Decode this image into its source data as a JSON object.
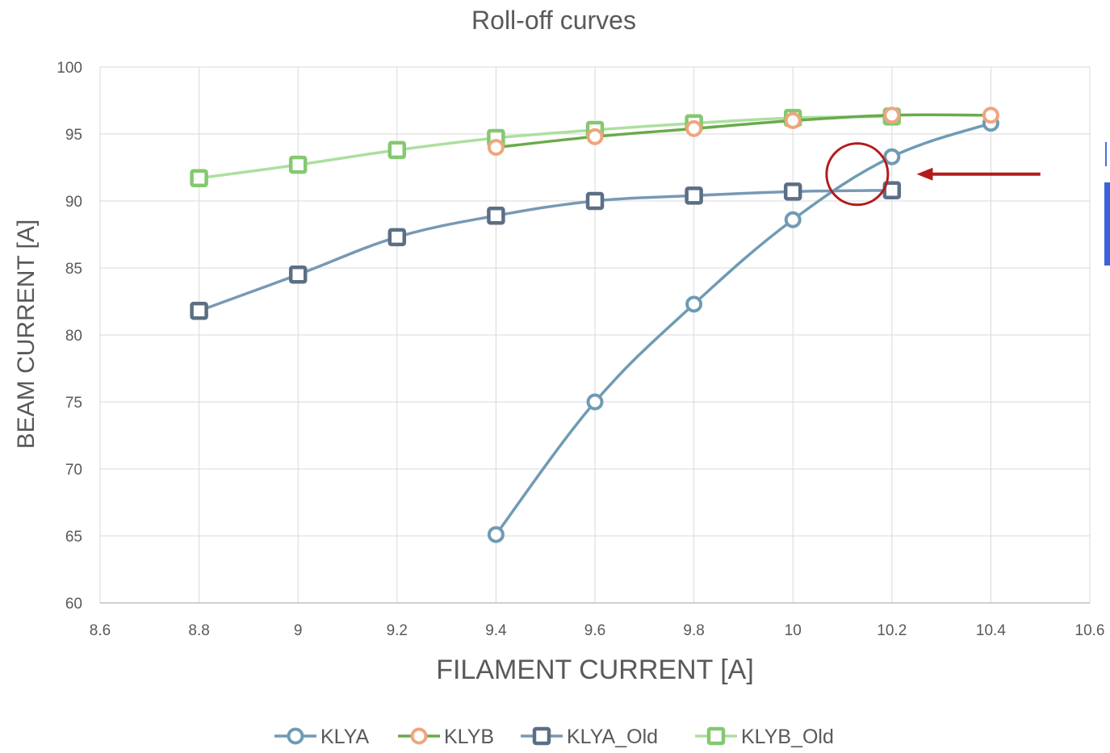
{
  "chart_data": {
    "type": "line",
    "title": "Roll-off curves",
    "xlabel": "FILAMENT CURRENT [A]",
    "ylabel": "BEAM CURRENT [A]",
    "xlim": [
      8.6,
      10.6
    ],
    "ylim": [
      60,
      100
    ],
    "x_ticks": [
      "8.6",
      "8.8",
      "9",
      "9.2",
      "9.4",
      "9.6",
      "9.8",
      "10",
      "10.2",
      "10.4",
      "10.6"
    ],
    "y_ticks": [
      "60",
      "65",
      "70",
      "75",
      "80",
      "85",
      "90",
      "95",
      "100"
    ],
    "grid": true,
    "legend_position": "bottom",
    "series": [
      {
        "name": "KLYA",
        "color": "#6f9bb4",
        "marker": "circle",
        "x": [
          9.4,
          9.6,
          9.8,
          10.0,
          10.2,
          10.4
        ],
        "y": [
          65.1,
          75.0,
          82.3,
          88.6,
          93.3,
          95.8
        ]
      },
      {
        "name": "KLYB",
        "color": "#6aaa4b",
        "marker_color": "#f0a57c",
        "marker": "circle",
        "x": [
          9.4,
          9.6,
          9.8,
          10.0,
          10.2,
          10.4
        ],
        "y": [
          94.0,
          94.8,
          95.4,
          96.0,
          96.4,
          96.4
        ]
      },
      {
        "name": "KLYA_Old",
        "color": "#7899b5",
        "marker_color": "#5b6f84",
        "marker": "square",
        "x": [
          8.8,
          9.0,
          9.2,
          9.4,
          9.6,
          9.8,
          10.0,
          10.2
        ],
        "y": [
          81.8,
          84.5,
          87.3,
          88.9,
          90.0,
          90.4,
          90.7,
          90.8
        ]
      },
      {
        "name": "KLYB_Old",
        "color": "#addf9f",
        "marker_color": "#84c870",
        "marker": "square",
        "x": [
          8.8,
          9.0,
          9.2,
          9.4,
          9.6,
          9.8,
          10.0,
          10.2
        ],
        "y": [
          91.7,
          92.7,
          93.8,
          94.7,
          95.3,
          95.8,
          96.2,
          96.3
        ]
      }
    ],
    "annotations": [
      {
        "type": "circle",
        "color": "#b31b1b",
        "x": 10.13,
        "y": 92.0
      },
      {
        "type": "arrow",
        "color": "#b31b1b",
        "direction": "left",
        "x_from": 10.5,
        "x_to": 10.25,
        "y": 92.0
      }
    ]
  }
}
